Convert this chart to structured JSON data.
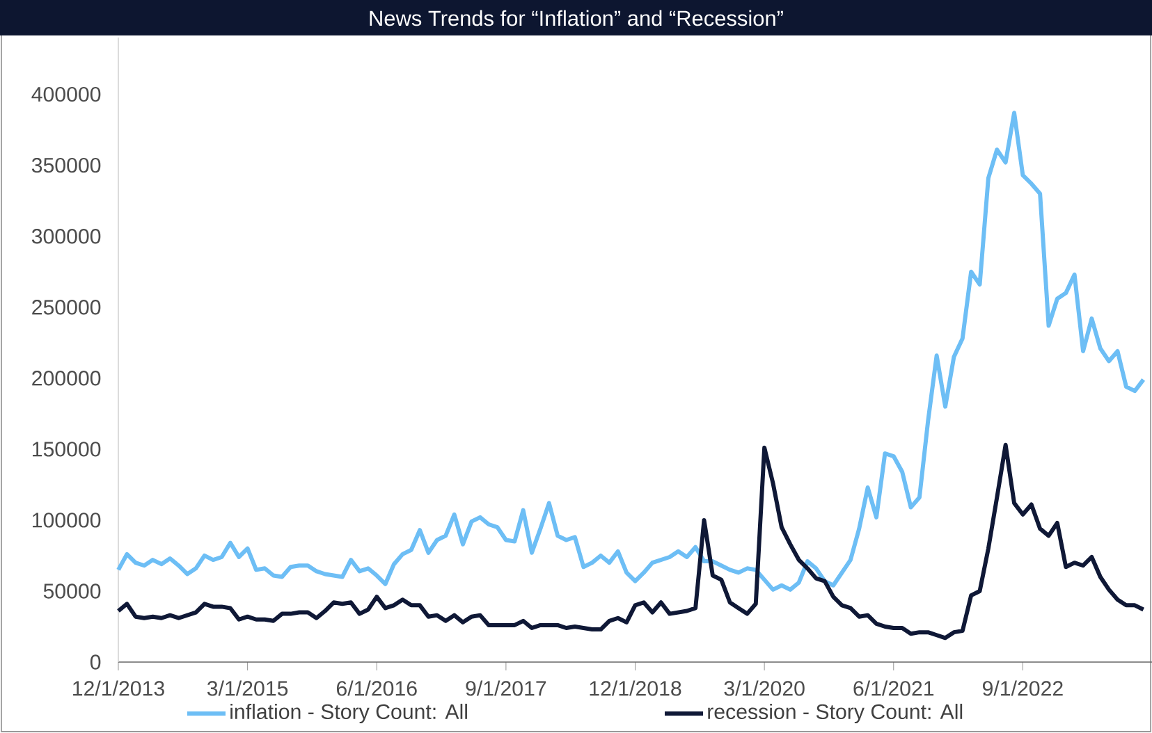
{
  "chart_data": {
    "type": "line",
    "title": "News Trends for  “Inflation” and “Recession”",
    "x": [
      "2013-12",
      "2014-01",
      "2014-02",
      "2014-03",
      "2014-04",
      "2014-05",
      "2014-06",
      "2014-07",
      "2014-08",
      "2014-09",
      "2014-10",
      "2014-11",
      "2014-12",
      "2015-01",
      "2015-02",
      "2015-03",
      "2015-04",
      "2015-05",
      "2015-06",
      "2015-07",
      "2015-08",
      "2015-09",
      "2015-10",
      "2015-11",
      "2015-12",
      "2016-01",
      "2016-02",
      "2016-03",
      "2016-04",
      "2016-05",
      "2016-06",
      "2016-07",
      "2016-08",
      "2016-09",
      "2016-10",
      "2016-11",
      "2016-12",
      "2017-01",
      "2017-02",
      "2017-03",
      "2017-04",
      "2017-05",
      "2017-06",
      "2017-07",
      "2017-08",
      "2017-09",
      "2017-10",
      "2017-11",
      "2017-12",
      "2018-01",
      "2018-02",
      "2018-03",
      "2018-04",
      "2018-05",
      "2018-06",
      "2018-07",
      "2018-08",
      "2018-09",
      "2018-10",
      "2018-11",
      "2018-12",
      "2019-01",
      "2019-02",
      "2019-03",
      "2019-04",
      "2019-05",
      "2019-06",
      "2019-07",
      "2019-08",
      "2019-09",
      "2019-10",
      "2019-11",
      "2019-12",
      "2020-01",
      "2020-02",
      "2020-03",
      "2020-04",
      "2020-05",
      "2020-06",
      "2020-07",
      "2020-08",
      "2020-09",
      "2020-10",
      "2020-11",
      "2020-12",
      "2021-01",
      "2021-02",
      "2021-03",
      "2021-04",
      "2021-05",
      "2021-06",
      "2021-07",
      "2021-08",
      "2021-09",
      "2021-10",
      "2021-11",
      "2021-12",
      "2022-01",
      "2022-02",
      "2022-03",
      "2022-04",
      "2022-05",
      "2022-06",
      "2022-07",
      "2022-08",
      "2022-09",
      "2022-10",
      "2022-11",
      "2022-12",
      "2023-01",
      "2023-02",
      "2023-03",
      "2023-04",
      "2023-05",
      "2023-06",
      "2023-07",
      "2023-08",
      "2023-09",
      "2023-10",
      "2023-11"
    ],
    "series": [
      {
        "name": "inflation - Story Count: All",
        "color": "#6dbef5",
        "values": [
          65000,
          76000,
          70000,
          68000,
          72000,
          69000,
          73000,
          68000,
          62000,
          66000,
          75000,
          72000,
          74000,
          84000,
          74000,
          80000,
          65000,
          66000,
          61000,
          60000,
          67000,
          68000,
          68000,
          64000,
          62000,
          61000,
          60000,
          72000,
          64000,
          66000,
          61000,
          55000,
          69000,
          76000,
          79000,
          93000,
          77000,
          86000,
          89000,
          104000,
          83000,
          99000,
          102000,
          97000,
          95000,
          86000,
          85000,
          107000,
          77000,
          94000,
          112000,
          89000,
          86000,
          88000,
          67000,
          70000,
          75000,
          70000,
          78000,
          63000,
          57000,
          63000,
          70000,
          72000,
          74000,
          78000,
          74000,
          81000,
          71000,
          71000,
          68000,
          65000,
          63000,
          66000,
          65000,
          58000,
          51000,
          54000,
          51000,
          56000,
          71000,
          66000,
          57000,
          54000,
          63000,
          72000,
          94000,
          123000,
          102000,
          147000,
          145000,
          134000,
          109000,
          116000,
          170000,
          216000,
          180000,
          215000,
          228000,
          275000,
          266000,
          341000,
          361000,
          352000,
          387000,
          343000,
          337000,
          330000,
          237000,
          256000,
          260000,
          273000,
          219000,
          242000,
          221000,
          212000,
          219000,
          194000,
          191000,
          199000
        ]
      },
      {
        "name": "recession - Story Count: All",
        "color": "#0f1836",
        "values": [
          36000,
          41000,
          32000,
          31000,
          32000,
          31000,
          33000,
          31000,
          33000,
          35000,
          41000,
          39000,
          39000,
          38000,
          30000,
          32000,
          30000,
          30000,
          29000,
          34000,
          34000,
          35000,
          35000,
          31000,
          36000,
          42000,
          41000,
          42000,
          34000,
          37000,
          46000,
          38000,
          40000,
          44000,
          40000,
          40000,
          32000,
          33000,
          29000,
          33000,
          28000,
          32000,
          33000,
          26000,
          26000,
          26000,
          26000,
          29000,
          24000,
          26000,
          26000,
          26000,
          24000,
          25000,
          24000,
          23000,
          23000,
          29000,
          31000,
          28000,
          40000,
          42000,
          35000,
          42000,
          34000,
          35000,
          36000,
          38000,
          100000,
          61000,
          58000,
          42000,
          38000,
          34000,
          41000,
          151000,
          126000,
          95000,
          83000,
          72000,
          66000,
          59000,
          57000,
          46000,
          40000,
          38000,
          32000,
          33000,
          27000,
          25000,
          24000,
          24000,
          20000,
          21000,
          21000,
          19000,
          17000,
          21000,
          22000,
          47000,
          50000,
          80000,
          116000,
          153000,
          112000,
          104000,
          111000,
          94000,
          89000,
          98000,
          67000,
          70000,
          68000,
          74000,
          60000,
          51000,
          44000,
          40000,
          40000,
          37000
        ]
      }
    ],
    "xlim": [
      "2013-12-01",
      "2023-12-01"
    ],
    "xticks": [
      {
        "value": "2013-12-01",
        "label": "12/1/2013"
      },
      {
        "value": "2015-03-01",
        "label": "3/1/2015"
      },
      {
        "value": "2016-06-01",
        "label": "6/1/2016"
      },
      {
        "value": "2017-09-01",
        "label": "9/1/2017"
      },
      {
        "value": "2018-12-01",
        "label": "12/1/2018"
      },
      {
        "value": "2020-03-01",
        "label": "3/1/2020"
      },
      {
        "value": "2021-06-01",
        "label": "6/1/2021"
      },
      {
        "value": "2022-09-01",
        "label": "9/1/2022"
      }
    ],
    "ylim": [
      0,
      440000
    ],
    "yticks": [
      0,
      50000,
      100000,
      150000,
      200000,
      250000,
      300000,
      350000,
      400000
    ],
    "grid": false,
    "legend": "bottom",
    "marker": "none",
    "line_style": "solid"
  }
}
